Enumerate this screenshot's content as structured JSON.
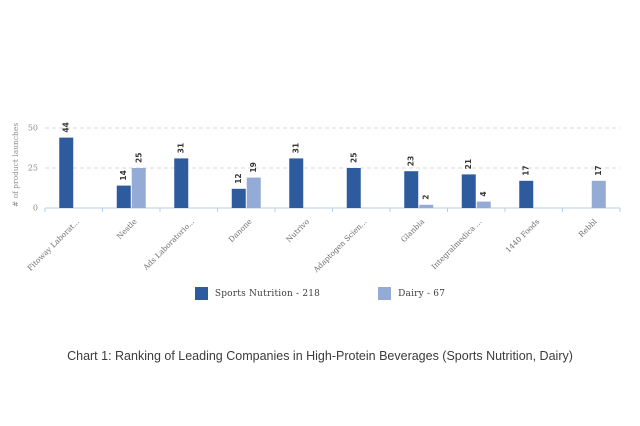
{
  "caption": "Chart 1: Ranking of Leading Companies in High-Protein Beverages (Sports Nutrition, Dairy)",
  "chart_data": {
    "type": "bar",
    "title": "",
    "xlabel": "",
    "ylabel": "# of product launches",
    "ylim": [
      0,
      55
    ],
    "yticks": [
      0,
      25,
      50
    ],
    "grid": "horizontal-dashed",
    "legend_position": "bottom",
    "categories": [
      "Fitoway Laborat...",
      "Nestle",
      "Ads Laboratorio...",
      "Danone",
      "Nutrivo",
      "Adaptogen Scien...",
      "Glanbia",
      "Integralmedica ...",
      "1440 Foods",
      "Rebbl"
    ],
    "series": [
      {
        "name": "Sports Nutrition - 218",
        "color": "#2e5b9e",
        "values": [
          44,
          14,
          31,
          12,
          31,
          25,
          23,
          21,
          17,
          null
        ]
      },
      {
        "name": "Dairy - 67",
        "color": "#93abd5",
        "values": [
          null,
          25,
          null,
          19,
          null,
          null,
          2,
          4,
          null,
          17
        ]
      }
    ]
  },
  "colors": {
    "background": "#ffffff",
    "gridline": "#d9d9d9",
    "axis_line": "#b7cde2",
    "tick_label": "#8c8c8c",
    "category_label": "#6e6e6e",
    "value_label": "#383838",
    "legend_text": "#404040",
    "caption_text": "#3b3b3b"
  }
}
